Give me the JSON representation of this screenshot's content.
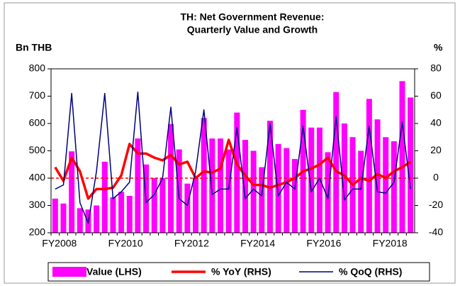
{
  "chart_data": {
    "type": "bar_line",
    "title": [
      "TH: Net Government Revenue:",
      "Quarterly Value and Growth"
    ],
    "y_label": "Bn THB",
    "y2_label": "%",
    "categories": [
      "FY2008",
      null,
      null,
      null,
      null,
      null,
      null,
      null,
      "FY2010",
      null,
      null,
      null,
      null,
      null,
      null,
      null,
      "FY2012",
      null,
      null,
      null,
      null,
      null,
      null,
      null,
      "FY2014",
      null,
      null,
      null,
      null,
      null,
      null,
      null,
      "FY2016",
      null,
      null,
      null,
      null,
      null,
      null,
      null,
      "FY2018",
      null,
      null,
      null
    ],
    "series": [
      {
        "name": "Value (LHS)",
        "color": "#ff00ff",
        "kind": "bar",
        "values": [
          325,
          307,
          498,
          290,
          285,
          300,
          460,
          330,
          350,
          335,
          545,
          450,
          400,
          400,
          598,
          505,
          380,
          400,
          620,
          545,
          545,
          505,
          640,
          540,
          500,
          440,
          610,
          525,
          510,
          470,
          650,
          585,
          585,
          495,
          715,
          600,
          550,
          500,
          690,
          615,
          550,
          535,
          755,
          695
        ]
      },
      {
        "name": "% YoY (RHS)",
        "color": "#ff0000",
        "kind": "line",
        "axis": "y2",
        "values": [
          8,
          -2,
          15,
          5,
          -15,
          -8,
          -8,
          -7,
          2,
          25,
          18,
          18,
          15,
          13,
          17,
          10,
          12,
          0,
          5,
          4,
          7,
          28,
          10,
          2,
          -5,
          -5,
          -7,
          -5,
          -3,
          0,
          5,
          7,
          10,
          15,
          5,
          2,
          -5,
          0,
          -2,
          3,
          0,
          5,
          8,
          12
        ]
      },
      {
        "name": "% QoQ (RHS)",
        "color": "#000080",
        "kind": "line",
        "axis": "y2",
        "values": [
          -8,
          -5,
          62,
          -18,
          -33,
          5,
          62,
          -15,
          -10,
          -3,
          63,
          -18,
          -12,
          0,
          52,
          -15,
          -20,
          5,
          50,
          -12,
          -8,
          -8,
          37,
          -15,
          -8,
          -13,
          40,
          -13,
          -3,
          -8,
          38,
          -10,
          0,
          -15,
          45,
          -16,
          -8,
          -8,
          38,
          -10,
          -11,
          -3,
          41,
          -8
        ]
      }
    ],
    "ylim": [
      200,
      800
    ],
    "yticks": [
      200,
      300,
      400,
      500,
      600,
      700,
      800
    ],
    "y2lim": [
      -40,
      80
    ],
    "y2ticks": [
      -40,
      -20,
      0,
      20,
      40,
      60,
      80
    ],
    "y2_reference": 0,
    "reference_color": "#ff0000",
    "legend": "bottom"
  }
}
